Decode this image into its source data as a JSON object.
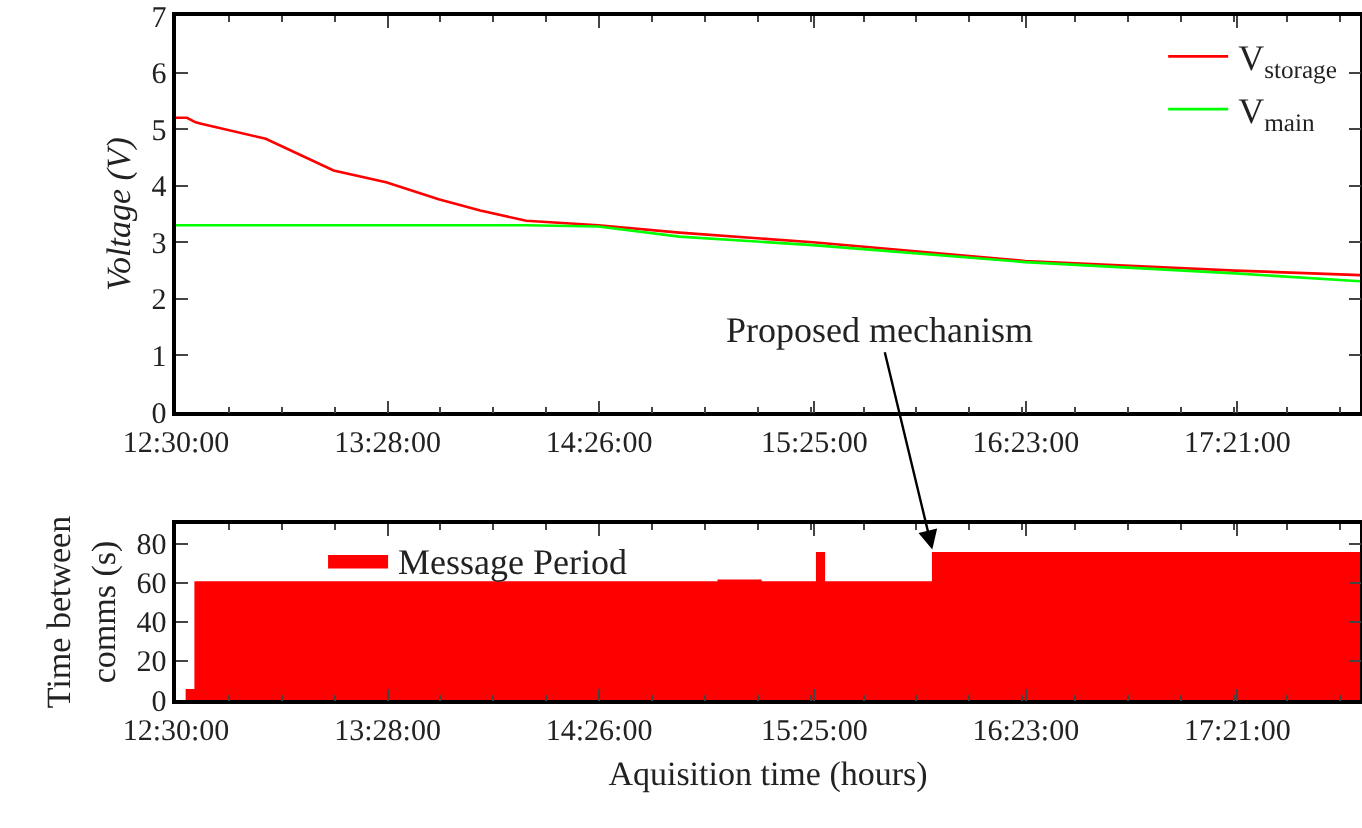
{
  "chart_data": [
    {
      "type": "line",
      "ylabel": "Voltage (V)",
      "legend": "top right",
      "grid": false,
      "xlim": [
        12.5,
        17.91
      ],
      "ylim": [
        0,
        7
      ],
      "yticks": [
        0,
        1,
        2,
        3,
        4,
        5,
        6,
        7
      ],
      "xticks": [
        {
          "value": 12.5,
          "label": "12:30:00"
        },
        {
          "value": 13.4667,
          "label": "13:28:00"
        },
        {
          "value": 14.4333,
          "label": "14:26:00"
        },
        {
          "value": 15.4167,
          "label": "15:25:00"
        },
        {
          "value": 16.3833,
          "label": "16:23:00"
        },
        {
          "value": 17.35,
          "label": "17:21:00"
        }
      ],
      "series": [
        {
          "name": "V$_{storage}$",
          "color": "#ff0000",
          "x": [
            12.5,
            12.55,
            12.59,
            12.61,
            12.91,
            13.22,
            13.46,
            13.7,
            13.89,
            14.1,
            14.43,
            14.8,
            15.41,
            16.38,
            17.34,
            17.91
          ],
          "values": [
            5.2,
            5.2,
            5.12,
            5.1,
            4.83,
            4.27,
            4.06,
            3.76,
            3.56,
            3.38,
            3.3,
            3.17,
            3.0,
            2.67,
            2.5,
            2.42
          ]
        },
        {
          "name": "V$_{main}$",
          "color": "#00ff00",
          "x": [
            12.5,
            13.5,
            14.1,
            14.43,
            14.8,
            15.41,
            16.38,
            17.34,
            17.91
          ],
          "values": [
            3.3,
            3.3,
            3.3,
            3.28,
            3.1,
            2.95,
            2.65,
            2.45,
            2.31
          ]
        }
      ]
    },
    {
      "type": "area",
      "xlabel": "Aquisition time (hours)",
      "ylabel": "Time between\ncomms (s)",
      "legend": "top left",
      "grid": false,
      "xlim": [
        12.5,
        17.91
      ],
      "ylim": [
        0,
        90
      ],
      "yticks": [
        0,
        20,
        40,
        60,
        80
      ],
      "xticks": [
        {
          "value": 12.5,
          "label": "12:30:00"
        },
        {
          "value": 13.4667,
          "label": "13:28:00"
        },
        {
          "value": 14.4333,
          "label": "14:26:00"
        },
        {
          "value": 15.4167,
          "label": "15:25:00"
        },
        {
          "value": 16.3833,
          "label": "16:23:00"
        },
        {
          "value": 17.35,
          "label": "17:21:00"
        }
      ],
      "annotations": [
        {
          "text": "Proposed mechanism",
          "x": 15.96,
          "y": 75
        }
      ],
      "series": [
        {
          "name": "Message Period",
          "color": "#ff0000",
          "x": [
            12.55,
            12.55,
            12.59,
            12.59,
            14.98,
            14.98,
            15.17,
            15.17,
            15.43,
            15.43,
            15.46,
            15.46,
            15.96,
            15.96,
            17.91
          ],
          "values": [
            0,
            5,
            5,
            60,
            60,
            61,
            61,
            60,
            60,
            75,
            75,
            60,
            60,
            75,
            75
          ]
        }
      ]
    }
  ]
}
